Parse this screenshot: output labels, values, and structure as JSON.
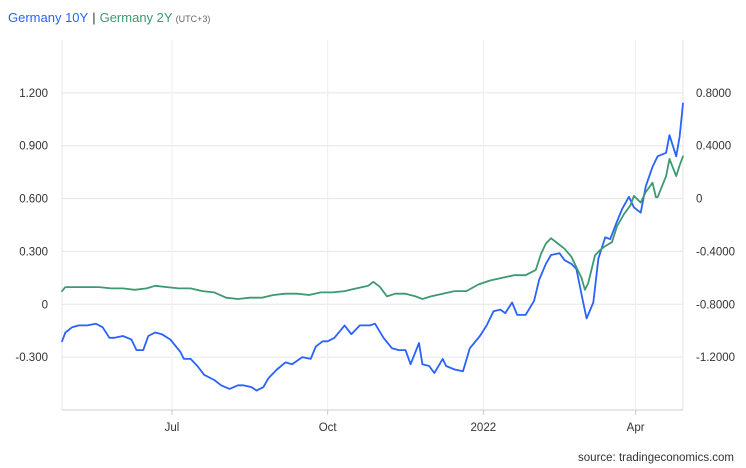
{
  "legend": {
    "series1": "Germany 10Y",
    "separator": "|",
    "series2": "Germany 2Y",
    "timezone": "(UTC+3)"
  },
  "source": "source: tradingeconomics.com",
  "chart_data": {
    "type": "line",
    "x_labels": [
      "Jul",
      "Oct",
      "2022",
      "Apr"
    ],
    "x_label_dates": [
      "2021-07-01",
      "2021-10-01",
      "2022-01-01",
      "2022-04-01"
    ],
    "x_range": [
      "2021-04-27",
      "2022-04-29"
    ],
    "left_axis": {
      "ticks": [
        "1.200",
        "0.900",
        "0.600",
        "0.300",
        "0",
        "-0.300"
      ],
      "ylim": [
        -0.6,
        1.5
      ]
    },
    "right_axis": {
      "ticks": [
        "0.8000",
        "0.4000",
        "0",
        "-0.4000",
        "-0.8000",
        "-1.2000"
      ],
      "ylim": [
        -1.6,
        1.2
      ]
    },
    "grid": true,
    "legend_position": "top-left",
    "series": [
      {
        "name": "Germany 10Y",
        "axis": "left",
        "color": "#2962ff",
        "points": [
          [
            "2021-04-27",
            -0.21
          ],
          [
            "2021-04-29",
            -0.16
          ],
          [
            "2021-05-03",
            -0.13
          ],
          [
            "2021-05-07",
            -0.12
          ],
          [
            "2021-05-12",
            -0.12
          ],
          [
            "2021-05-17",
            -0.11
          ],
          [
            "2021-05-21",
            -0.13
          ],
          [
            "2021-05-25",
            -0.19
          ],
          [
            "2021-05-28",
            -0.19
          ],
          [
            "2021-06-02",
            -0.18
          ],
          [
            "2021-06-07",
            -0.2
          ],
          [
            "2021-06-10",
            -0.26
          ],
          [
            "2021-06-14",
            -0.26
          ],
          [
            "2021-06-17",
            -0.18
          ],
          [
            "2021-06-21",
            -0.16
          ],
          [
            "2021-06-25",
            -0.17
          ],
          [
            "2021-06-30",
            -0.2
          ],
          [
            "2021-07-06",
            -0.27
          ],
          [
            "2021-07-08",
            -0.31
          ],
          [
            "2021-07-12",
            -0.31
          ],
          [
            "2021-07-16",
            -0.35
          ],
          [
            "2021-07-20",
            -0.4
          ],
          [
            "2021-07-26",
            -0.43
          ],
          [
            "2021-07-30",
            -0.46
          ],
          [
            "2021-08-04",
            -0.48
          ],
          [
            "2021-08-09",
            -0.46
          ],
          [
            "2021-08-12",
            -0.46
          ],
          [
            "2021-08-17",
            -0.47
          ],
          [
            "2021-08-20",
            -0.49
          ],
          [
            "2021-08-24",
            -0.47
          ],
          [
            "2021-08-27",
            -0.42
          ],
          [
            "2021-09-01",
            -0.37
          ],
          [
            "2021-09-06",
            -0.33
          ],
          [
            "2021-09-10",
            -0.34
          ],
          [
            "2021-09-16",
            -0.3
          ],
          [
            "2021-09-21",
            -0.31
          ],
          [
            "2021-09-24",
            -0.24
          ],
          [
            "2021-09-28",
            -0.21
          ],
          [
            "2021-10-01",
            -0.21
          ],
          [
            "2021-10-05",
            -0.19
          ],
          [
            "2021-10-11",
            -0.12
          ],
          [
            "2021-10-15",
            -0.17
          ],
          [
            "2021-10-20",
            -0.12
          ],
          [
            "2021-10-26",
            -0.12
          ],
          [
            "2021-10-29",
            -0.11
          ],
          [
            "2021-11-03",
            -0.19
          ],
          [
            "2021-11-08",
            -0.25
          ],
          [
            "2021-11-12",
            -0.26
          ],
          [
            "2021-11-16",
            -0.26
          ],
          [
            "2021-11-19",
            -0.34
          ],
          [
            "2021-11-24",
            -0.22
          ],
          [
            "2021-11-26",
            -0.34
          ],
          [
            "2021-11-30",
            -0.35
          ],
          [
            "2021-12-03",
            -0.39
          ],
          [
            "2021-12-08",
            -0.31
          ],
          [
            "2021-12-10",
            -0.35
          ],
          [
            "2021-12-15",
            -0.37
          ],
          [
            "2021-12-20",
            -0.38
          ],
          [
            "2021-12-24",
            -0.25
          ],
          [
            "2021-12-30",
            -0.18
          ],
          [
            "2022-01-03",
            -0.12
          ],
          [
            "2022-01-07",
            -0.04
          ],
          [
            "2022-01-11",
            -0.03
          ],
          [
            "2022-01-14",
            -0.05
          ],
          [
            "2022-01-18",
            0.01
          ],
          [
            "2022-01-21",
            -0.06
          ],
          [
            "2022-01-26",
            -0.06
          ],
          [
            "2022-01-31",
            0.02
          ],
          [
            "2022-02-03",
            0.14
          ],
          [
            "2022-02-07",
            0.23
          ],
          [
            "2022-02-10",
            0.28
          ],
          [
            "2022-02-15",
            0.29
          ],
          [
            "2022-02-18",
            0.25
          ],
          [
            "2022-02-22",
            0.23
          ],
          [
            "2022-02-25",
            0.2
          ],
          [
            "2022-03-01",
            0.01
          ],
          [
            "2022-03-03",
            -0.08
          ],
          [
            "2022-03-07",
            0.01
          ],
          [
            "2022-03-10",
            0.26
          ],
          [
            "2022-03-14",
            0.38
          ],
          [
            "2022-03-17",
            0.37
          ],
          [
            "2022-03-21",
            0.47
          ],
          [
            "2022-03-24",
            0.54
          ],
          [
            "2022-03-28",
            0.61
          ],
          [
            "2022-03-31",
            0.55
          ],
          [
            "2022-04-04",
            0.52
          ],
          [
            "2022-04-07",
            0.67
          ],
          [
            "2022-04-11",
            0.78
          ],
          [
            "2022-04-14",
            0.84
          ],
          [
            "2022-04-19",
            0.86
          ],
          [
            "2022-04-21",
            0.96
          ],
          [
            "2022-04-25",
            0.84
          ],
          [
            "2022-04-27",
            0.95
          ],
          [
            "2022-04-29",
            1.14
          ]
        ]
      },
      {
        "name": "Germany 2Y",
        "axis": "right",
        "color": "#3d9970",
        "points": [
          [
            "2021-04-27",
            -0.7
          ],
          [
            "2021-04-29",
            -0.67
          ],
          [
            "2021-05-05",
            -0.67
          ],
          [
            "2021-05-12",
            -0.67
          ],
          [
            "2021-05-19",
            -0.67
          ],
          [
            "2021-05-26",
            -0.68
          ],
          [
            "2021-06-02",
            -0.68
          ],
          [
            "2021-06-09",
            -0.69
          ],
          [
            "2021-06-16",
            -0.68
          ],
          [
            "2021-06-21",
            -0.66
          ],
          [
            "2021-06-28",
            -0.67
          ],
          [
            "2021-07-05",
            -0.68
          ],
          [
            "2021-07-12",
            -0.68
          ],
          [
            "2021-07-19",
            -0.7
          ],
          [
            "2021-07-26",
            -0.71
          ],
          [
            "2021-08-02",
            -0.75
          ],
          [
            "2021-08-09",
            -0.76
          ],
          [
            "2021-08-16",
            -0.75
          ],
          [
            "2021-08-23",
            -0.75
          ],
          [
            "2021-08-30",
            -0.73
          ],
          [
            "2021-09-06",
            -0.72
          ],
          [
            "2021-09-13",
            -0.72
          ],
          [
            "2021-09-20",
            -0.73
          ],
          [
            "2021-09-27",
            -0.71
          ],
          [
            "2021-10-04",
            -0.71
          ],
          [
            "2021-10-11",
            -0.7
          ],
          [
            "2021-10-18",
            -0.68
          ],
          [
            "2021-10-25",
            -0.66
          ],
          [
            "2021-10-28",
            -0.63
          ],
          [
            "2021-11-01",
            -0.67
          ],
          [
            "2021-11-05",
            -0.74
          ],
          [
            "2021-11-10",
            -0.72
          ],
          [
            "2021-11-16",
            -0.72
          ],
          [
            "2021-11-22",
            -0.74
          ],
          [
            "2021-11-26",
            -0.76
          ],
          [
            "2021-12-01",
            -0.74
          ],
          [
            "2021-12-08",
            -0.72
          ],
          [
            "2021-12-15",
            -0.7
          ],
          [
            "2021-12-22",
            -0.7
          ],
          [
            "2021-12-29",
            -0.65
          ],
          [
            "2022-01-05",
            -0.62
          ],
          [
            "2022-01-12",
            -0.6
          ],
          [
            "2022-01-19",
            -0.58
          ],
          [
            "2022-01-26",
            -0.58
          ],
          [
            "2022-02-01",
            -0.54
          ],
          [
            "2022-02-04",
            -0.42
          ],
          [
            "2022-02-07",
            -0.34
          ],
          [
            "2022-02-10",
            -0.3
          ],
          [
            "2022-02-14",
            -0.34
          ],
          [
            "2022-02-18",
            -0.38
          ],
          [
            "2022-02-22",
            -0.44
          ],
          [
            "2022-02-28",
            -0.6
          ],
          [
            "2022-03-02",
            -0.69
          ],
          [
            "2022-03-04",
            -0.64
          ],
          [
            "2022-03-08",
            -0.43
          ],
          [
            "2022-03-11",
            -0.39
          ],
          [
            "2022-03-14",
            -0.36
          ],
          [
            "2022-03-18",
            -0.33
          ],
          [
            "2022-03-21",
            -0.21
          ],
          [
            "2022-03-25",
            -0.12
          ],
          [
            "2022-03-29",
            -0.05
          ],
          [
            "2022-03-31",
            0.02
          ],
          [
            "2022-04-04",
            -0.03
          ],
          [
            "2022-04-07",
            0.05
          ],
          [
            "2022-04-11",
            0.12
          ],
          [
            "2022-04-13",
            0.01
          ],
          [
            "2022-04-14",
            0.01
          ],
          [
            "2022-04-19",
            0.17
          ],
          [
            "2022-04-21",
            0.3
          ],
          [
            "2022-04-25",
            0.17
          ],
          [
            "2022-04-27",
            0.25
          ],
          [
            "2022-04-29",
            0.32
          ]
        ]
      }
    ]
  }
}
